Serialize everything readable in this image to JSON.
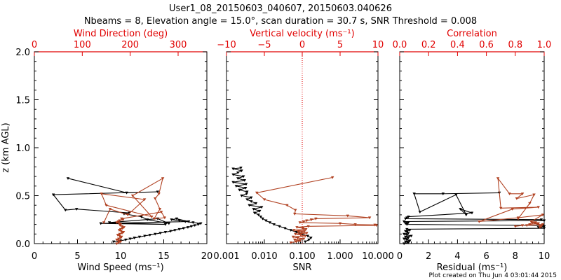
{
  "title_line1": "User1_08_20150603_040607, 20150603.040626",
  "title_line2": "Nbeams = 8, Elevation angle = 15.0°, scan duration = 30.7 s, SNR Threshold = 0.008",
  "credit": "Plot created on Thu Jun  4 03:01:44 2015",
  "colors": {
    "black": "#000000",
    "red": "#e00000",
    "brown": "#b04020"
  },
  "chart_data": [
    {
      "type": "line",
      "ylabel": "z (km AGL)",
      "ylim": [
        0,
        2.0
      ],
      "yticks": [
        "0.0",
        "0.5",
        "1.0",
        "1.5",
        "2.0"
      ],
      "xlabel": "Wind Speed (ms⁻¹)",
      "xlim": [
        0,
        20
      ],
      "xticks": [
        "0",
        "5",
        "10",
        "15",
        "20"
      ],
      "top_xlabel": "Wind Direction (deg)",
      "top_xlim": [
        0,
        360
      ],
      "top_xticks": [
        "0",
        "100",
        "200",
        "300"
      ],
      "series": [
        {
          "name": "Wind Speed",
          "color": "black",
          "x": [
            9.2,
            10.0,
            10.6,
            11.1,
            11.6,
            12.2,
            12.8,
            13.4,
            14.0,
            14.6,
            15.2,
            15.8,
            16.3,
            16.8,
            17.3,
            17.8,
            18.2,
            18.6,
            19.0,
            19.3,
            18.4,
            17.5,
            16.8,
            15.9,
            16.5,
            17.9,
            7.7,
            15.2,
            8.7,
            14.3,
            15.6,
            13.1,
            12.4,
            10.4,
            11.0,
            4.9,
            3.6,
            2.2,
            14.3,
            10.7,
            3.9
          ],
          "y": [
            0.02,
            0.03,
            0.04,
            0.05,
            0.06,
            0.07,
            0.08,
            0.09,
            0.1,
            0.11,
            0.12,
            0.13,
            0.14,
            0.15,
            0.16,
            0.17,
            0.18,
            0.19,
            0.2,
            0.21,
            0.22,
            0.23,
            0.24,
            0.25,
            0.26,
            0.23,
            0.21,
            0.2,
            0.22,
            0.26,
            0.21,
            0.25,
            0.28,
            0.31,
            0.32,
            0.36,
            0.35,
            0.51,
            0.54,
            0.53,
            0.68
          ]
        },
        {
          "name": "Wind Direction",
          "color": "brown",
          "x": [
            172,
            176,
            180,
            176,
            172,
            176,
            180,
            182,
            178,
            174,
            178,
            183,
            186,
            181,
            177,
            180,
            184,
            187,
            183,
            179,
            180,
            177,
            172,
            175,
            178,
            185,
            182,
            265,
            272,
            250,
            262,
            252,
            260,
            268,
            205,
            245,
            150,
            140,
            230,
            195,
            158,
            145
          ],
          "y": [
            0.0,
            0.01,
            0.02,
            0.03,
            0.04,
            0.05,
            0.06,
            0.07,
            0.08,
            0.09,
            0.1,
            0.11,
            0.12,
            0.13,
            0.14,
            0.15,
            0.16,
            0.17,
            0.18,
            0.19,
            0.2,
            0.21,
            0.22,
            0.23,
            0.24,
            0.25,
            0.26,
            0.33,
            0.27,
            0.26,
            0.36,
            0.47,
            0.52,
            0.68,
            0.5,
            0.28,
            0.4,
            0.52,
            0.46,
            0.3,
            0.36,
            0.22
          ]
        }
      ]
    },
    {
      "type": "line",
      "xlabel": "SNR",
      "xscale": "log",
      "xlim": [
        0.001,
        10
      ],
      "xticks": [
        "0.001",
        "0.010",
        "0.100",
        "1.000",
        "10.000"
      ],
      "top_xlabel": "Vertical velocity (ms⁻¹)",
      "top_xlim": [
        -10,
        10
      ],
      "top_xticks": [
        "−10",
        "−5",
        "0",
        "5",
        "10"
      ],
      "ylim": [
        0,
        2.0
      ],
      "zero_line": 0,
      "series": [
        {
          "name": "SNR",
          "color": "black",
          "x": [
            0.12,
            0.15,
            0.17,
            0.14,
            0.1,
            0.07,
            0.05,
            0.035,
            0.025,
            0.018,
            0.014,
            0.011,
            0.009,
            0.008,
            0.007,
            0.0055,
            0.0075,
            0.0052,
            0.0085,
            0.004,
            0.006,
            0.0045,
            0.0035,
            0.0045,
            0.0025,
            0.0034,
            0.0035,
            0.0022,
            0.0032,
            0.0018,
            0.0033,
            0.0015,
            0.003,
            0.002,
            0.0028,
            0.0015,
            0.002,
            0.0025,
            0.0015,
            0.0024
          ],
          "y": [
            0.02,
            0.04,
            0.06,
            0.08,
            0.1,
            0.12,
            0.14,
            0.16,
            0.18,
            0.2,
            0.22,
            0.24,
            0.26,
            0.28,
            0.3,
            0.32,
            0.34,
            0.36,
            0.38,
            0.4,
            0.42,
            0.44,
            0.46,
            0.48,
            0.5,
            0.52,
            0.54,
            0.56,
            0.58,
            0.6,
            0.62,
            0.64,
            0.66,
            0.68,
            0.7,
            0.72,
            0.74,
            0.76,
            0.78,
            0.79
          ]
        },
        {
          "name": "Vertical velocity",
          "color": "brown",
          "x": [
            -1.5,
            -0.8,
            -0.3,
            -1.0,
            0.2,
            -0.6,
            -1.2,
            0.4,
            -0.2,
            -0.9,
            0.6,
            -0.5,
            0.3,
            -1.1,
            0.5,
            0.1,
            -0.7,
            0.8,
            9.8,
            9.6,
            7.0,
            5.0,
            -0.3,
            0.2,
            0.6,
            1.2,
            1.8,
            8.9,
            6.0,
            -1.0,
            -0.9,
            -2.0,
            -5.0,
            -6.0,
            4.0
          ],
          "y": [
            0.01,
            0.02,
            0.03,
            0.04,
            0.05,
            0.06,
            0.07,
            0.08,
            0.09,
            0.1,
            0.11,
            0.12,
            0.13,
            0.14,
            0.15,
            0.16,
            0.17,
            0.18,
            0.19,
            0.195,
            0.2,
            0.21,
            0.22,
            0.23,
            0.24,
            0.25,
            0.26,
            0.27,
            0.29,
            0.31,
            0.35,
            0.4,
            0.46,
            0.53,
            0.69
          ]
        }
      ]
    },
    {
      "type": "line",
      "xlabel": "Residual (ms⁻¹)",
      "xlim": [
        0,
        10
      ],
      "xticks": [
        "0",
        "2",
        "4",
        "6",
        "8",
        "10"
      ],
      "top_xlabel": "Correlation",
      "top_xlim": [
        0,
        1.0
      ],
      "top_xticks": [
        "0.0",
        "0.2",
        "0.4",
        "0.6",
        "0.8",
        "1.0"
      ],
      "ylim": [
        0,
        2.0
      ],
      "series": [
        {
          "name": "Residual",
          "color": "black",
          "x": [
            0.3,
            0.6,
            0.4,
            0.7,
            0.5,
            0.3,
            0.6,
            0.4,
            0.8,
            0.5,
            0.3,
            0.6,
            0.5,
            0.4,
            0.7,
            0.5,
            10.0,
            9.6,
            10.0,
            9.9,
            0.5,
            0.4,
            0.6,
            0.3,
            10.0,
            9.8,
            0.4,
            0.5,
            0.6,
            5.0,
            4.2,
            4.6,
            3.9,
            1.4,
            1.0,
            3.0,
            6.9
          ],
          "y": [
            0.0,
            0.01,
            0.02,
            0.03,
            0.04,
            0.05,
            0.06,
            0.07,
            0.08,
            0.09,
            0.1,
            0.11,
            0.12,
            0.13,
            0.14,
            0.15,
            0.16,
            0.17,
            0.18,
            0.19,
            0.2,
            0.21,
            0.22,
            0.23,
            0.24,
            0.25,
            0.26,
            0.27,
            0.28,
            0.32,
            0.36,
            0.3,
            0.51,
            0.33,
            0.52,
            0.52,
            0.53
          ]
        },
        {
          "name": "Correlation",
          "color": "brown",
          "x": [
            0.8,
            0.85,
            0.9,
            0.95,
            0.92,
            0.88,
            0.99,
            0.97,
            0.96,
            0.98,
            0.94,
            0.91,
            0.99,
            0.82,
            0.55,
            0.78,
            0.96,
            0.7,
            0.68,
            0.76,
            0.85,
            0.81,
            0.93,
            0.9,
            0.82
          ],
          "y": [
            0.18,
            0.19,
            0.2,
            0.21,
            0.22,
            0.19,
            0.2,
            0.17,
            0.21,
            0.18,
            0.22,
            0.23,
            0.3,
            0.27,
            0.23,
            0.36,
            0.38,
            0.37,
            0.68,
            0.52,
            0.52,
            0.47,
            0.51,
            0.42,
            0.26
          ]
        }
      ]
    }
  ]
}
